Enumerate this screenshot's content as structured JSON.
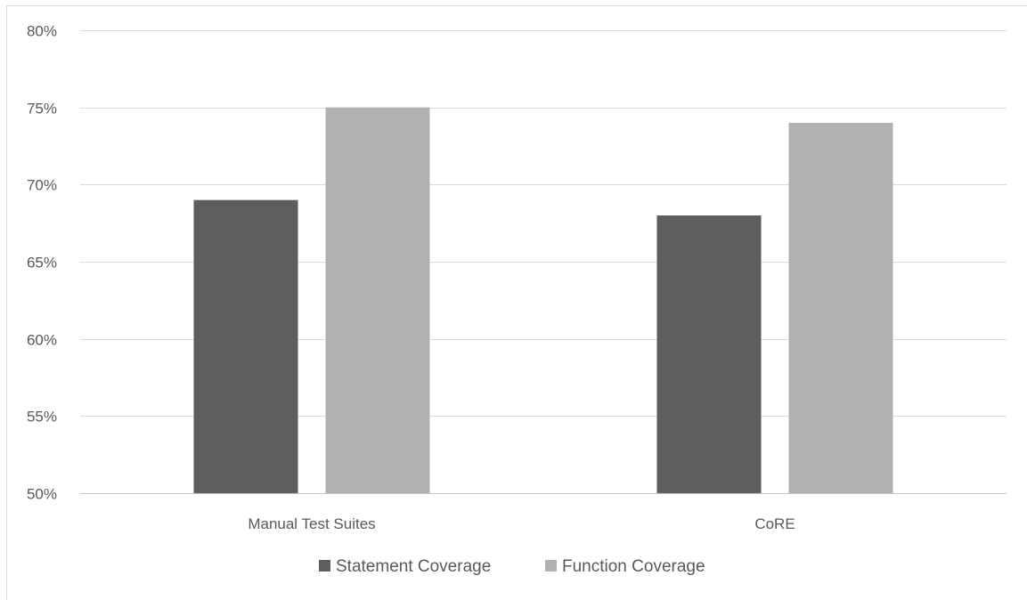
{
  "chart_data": {
    "type": "bar",
    "categories": [
      "Manual Test Suites",
      "CoRE"
    ],
    "series": [
      {
        "name": "Statement Coverage",
        "values": [
          69,
          68
        ],
        "color": "#5e5e5e"
      },
      {
        "name": "Function Coverage",
        "values": [
          75,
          74
        ],
        "color": "#b1b1b1"
      }
    ],
    "ylim": [
      50,
      80
    ],
    "yticks": [
      50,
      55,
      60,
      65,
      70,
      75,
      80
    ],
    "ytick_labels": [
      "50%",
      "55%",
      "60%",
      "65%",
      "70%",
      "75%",
      "80%"
    ],
    "grid": true,
    "legend_position": "bottom",
    "title": "",
    "xlabel": "",
    "ylabel": ""
  }
}
